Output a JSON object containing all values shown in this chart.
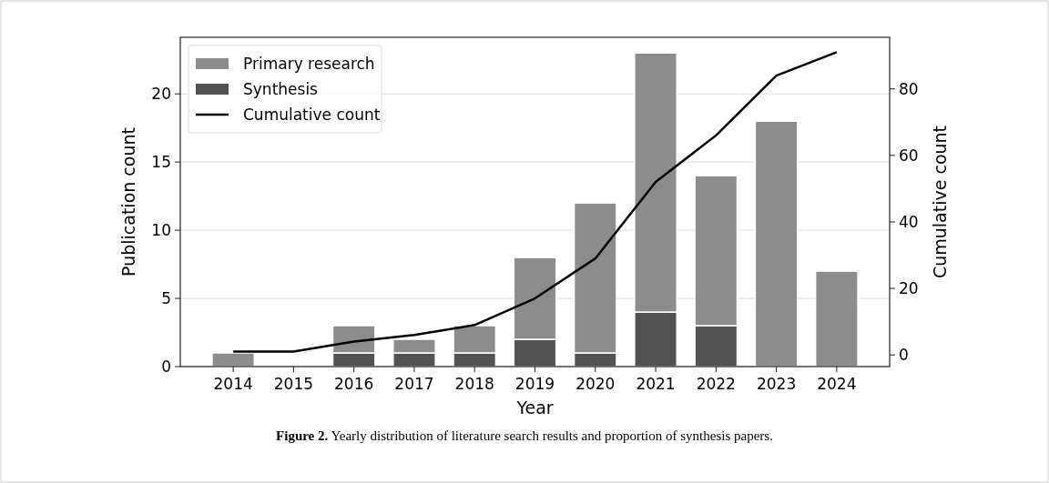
{
  "chart_data": {
    "type": "bar",
    "stacked": true,
    "xlabel": "Year",
    "ylabel": "Publication count",
    "y2label": "Cumulative count",
    "categories": [
      "2014",
      "2015",
      "2016",
      "2017",
      "2018",
      "2019",
      "2020",
      "2021",
      "2022",
      "2023",
      "2024"
    ],
    "series": [
      {
        "name": "Synthesis",
        "color": "#525252",
        "values": [
          0,
          0,
          1,
          1,
          1,
          2,
          1,
          4,
          3,
          0,
          0
        ]
      },
      {
        "name": "Primary research",
        "color": "#8c8c8c",
        "values": [
          1,
          0,
          2,
          1,
          2,
          6,
          11,
          19,
          11,
          18,
          7
        ]
      },
      {
        "name": "Cumulative count",
        "type": "line",
        "axis": "y2",
        "color": "#000000",
        "values": [
          1,
          1,
          4,
          6,
          9,
          17,
          29,
          52,
          66,
          84,
          91
        ]
      }
    ],
    "ylim": [
      0,
      24.15
    ],
    "yticks": [
      0,
      5,
      10,
      15,
      20
    ],
    "y2lim": [
      -3.5,
      95.5
    ],
    "y2ticks": [
      0,
      20,
      40,
      60,
      80
    ],
    "grid": "y",
    "legend": "top left",
    "annotations": [
      "Figure 2. Yearly distribution of literature search results and proportion of synthesis papers."
    ]
  }
}
